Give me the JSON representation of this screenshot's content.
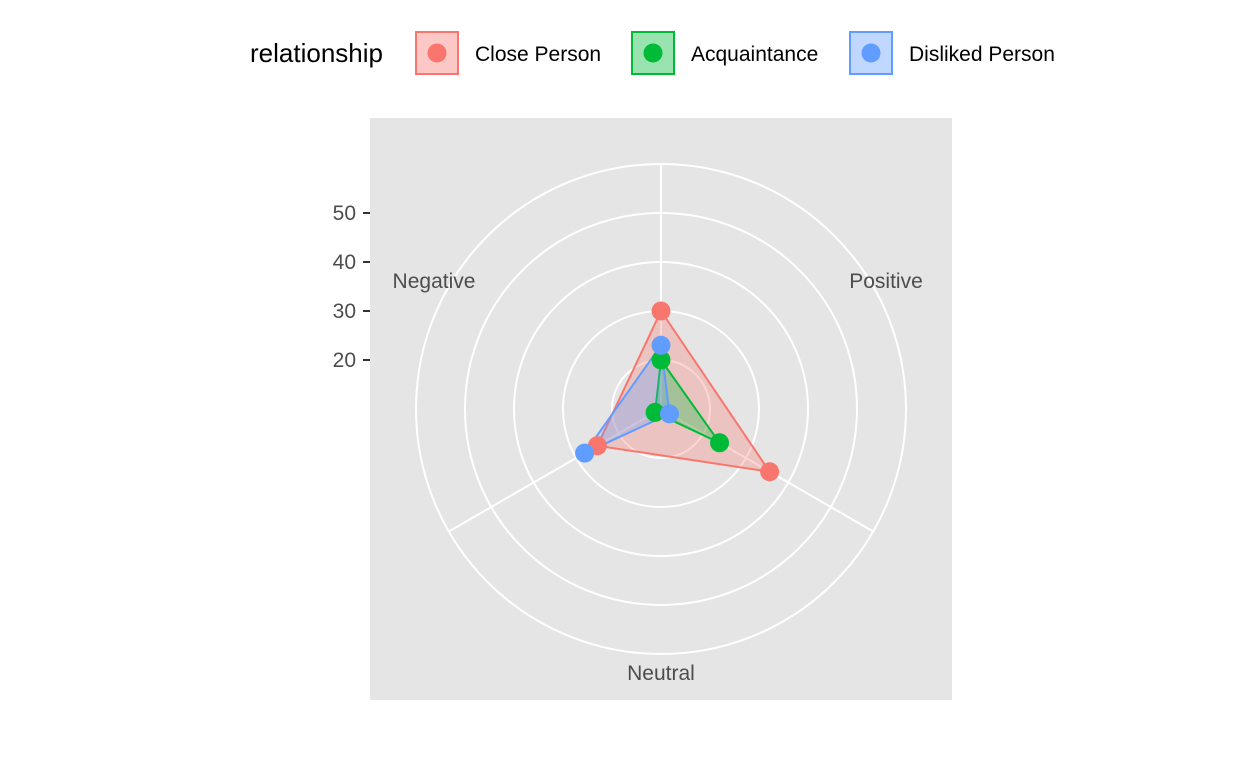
{
  "chart_data": {
    "type": "radar",
    "title": "",
    "legend": {
      "title": "relationship",
      "placement": "top"
    },
    "axes": [
      "Positive",
      "Negative",
      "Neutral"
    ],
    "radial_ticks": [
      20,
      30,
      40,
      50
    ],
    "radial_range": [
      10,
      60
    ],
    "grid": true,
    "series": [
      {
        "name": "Close Person",
        "color": "#F8766D",
        "values": [
          35.6,
          25.0,
          30.0
        ]
      },
      {
        "name": "Acquaintance",
        "color": "#00BA38",
        "values": [
          23.8,
          11.4,
          20.0
        ]
      },
      {
        "name": "Disliked Person",
        "color": "#619CFF",
        "values": [
          12.0,
          28.0,
          23.0
        ]
      }
    ]
  }
}
